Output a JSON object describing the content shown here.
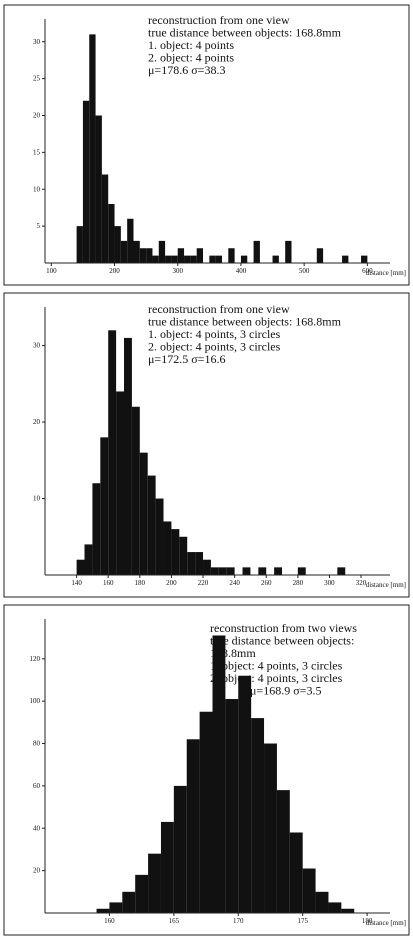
{
  "chart_data": [
    {
      "type": "histogram",
      "annotations": [
        "reconstruction from one view",
        "true distance between objects: 168.8mm",
        "1. object: 4 points",
        "2. object: 4 points",
        "μ=178.6   σ=38.3"
      ],
      "xlabel": "distance [mm]",
      "bins": [
        140,
        150,
        160,
        170,
        180,
        190,
        200,
        210,
        220,
        230,
        240,
        250,
        260,
        270,
        280,
        290,
        300,
        310,
        320,
        330,
        340,
        350,
        360,
        370,
        380,
        390,
        400,
        410,
        420,
        430,
        440,
        450,
        460,
        470,
        480,
        490,
        500,
        510,
        520,
        530,
        540,
        550,
        560,
        570,
        580,
        590,
        600
      ],
      "counts": [
        5,
        22,
        31,
        20,
        12,
        8,
        5,
        3,
        6,
        3,
        2,
        2,
        1,
        3,
        1,
        1,
        2,
        1,
        1,
        2,
        0,
        1,
        1,
        0,
        2,
        0,
        1,
        0,
        3,
        0,
        0,
        1,
        0,
        3,
        0,
        0,
        0,
        0,
        2,
        0,
        0,
        0,
        1,
        0,
        0,
        1
      ],
      "color": "#111111",
      "xlim": [
        90,
        620
      ],
      "ylim": [
        0,
        32
      ],
      "xticks": [
        100,
        200,
        300,
        400,
        500,
        600
      ],
      "yticks": [
        5,
        10,
        15,
        20,
        25,
        30
      ]
    },
    {
      "type": "histogram",
      "annotations": [
        "reconstruction from one view",
        "true distance between objects: 168.8mm",
        "1. object: 4 points, 3 circles",
        "2. object: 4 points, 3 circles",
        "μ=172.5    σ=16.6"
      ],
      "xlabel": "distance [mm]",
      "bins": [
        140,
        145,
        150,
        155,
        160,
        165,
        170,
        175,
        180,
        185,
        190,
        195,
        200,
        205,
        210,
        215,
        220,
        225,
        230,
        235,
        240,
        245,
        250,
        255,
        260,
        265,
        270,
        275,
        280,
        285,
        290,
        295,
        300,
        305,
        310
      ],
      "counts": [
        2,
        4,
        12,
        18,
        32,
        24,
        31,
        22,
        16,
        13,
        10,
        7,
        6,
        5,
        3,
        3,
        2,
        1,
        1,
        1,
        0,
        1,
        0,
        1,
        0,
        1,
        0,
        0,
        1,
        0,
        0,
        0,
        0,
        1
      ],
      "color": "#111111",
      "xlim": [
        120,
        332
      ],
      "ylim": [
        0,
        34
      ],
      "xticks": [
        140,
        160,
        180,
        200,
        220,
        240,
        260,
        280,
        300,
        320
      ],
      "yticks": [
        10,
        20,
        30
      ]
    },
    {
      "type": "histogram",
      "annotations": [
        "reconstruction from two views",
        "true distance between objects:",
        "168.8mm",
        "1. object: 4 points, 3 circles",
        "2. object: 4 points, 3 circles",
        "μ=168.9    σ=3.5"
      ],
      "xlabel": "distance [mm]",
      "bins": [
        159,
        160,
        161,
        162,
        163,
        164,
        165,
        166,
        167,
        168,
        169,
        170,
        171,
        172,
        173,
        174,
        175,
        176,
        177,
        178,
        179
      ],
      "counts": [
        2,
        5,
        10,
        18,
        28,
        43,
        60,
        82,
        95,
        131,
        101,
        112,
        92,
        80,
        58,
        38,
        21,
        10,
        5,
        2
      ],
      "color": "#111111",
      "xlim": [
        155,
        181
      ],
      "ylim": [
        0,
        135
      ],
      "xticks": [
        160,
        165,
        170,
        175,
        180
      ],
      "yticks": [
        20,
        40,
        60,
        80,
        100,
        120
      ]
    }
  ]
}
